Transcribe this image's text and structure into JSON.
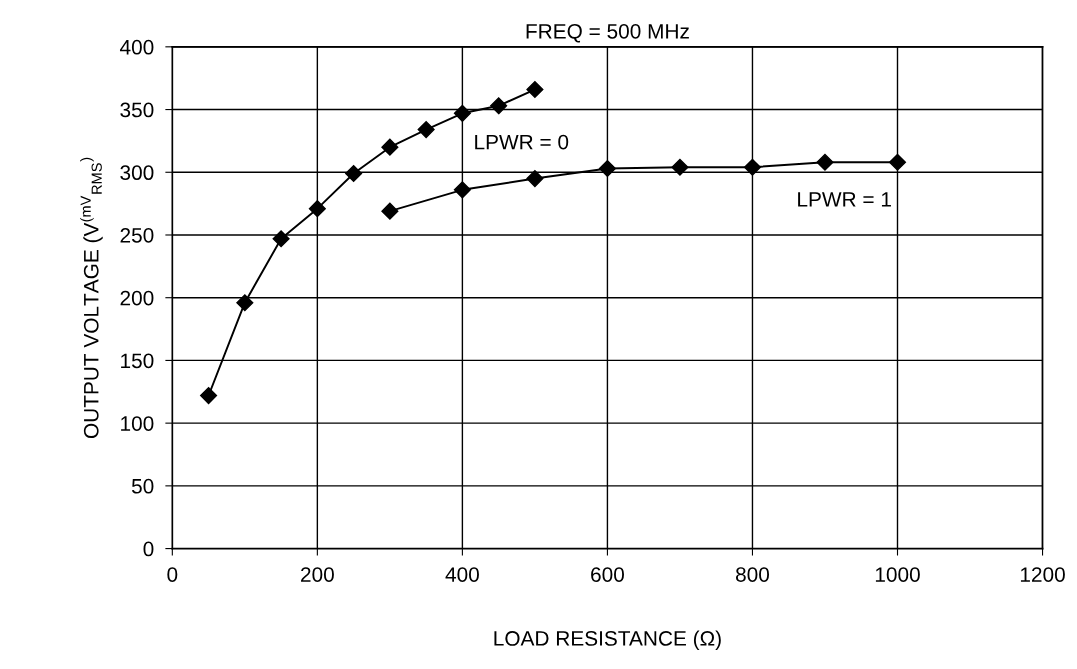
{
  "chart_data": {
    "type": "line",
    "title": "FREQ = 500 MHz",
    "xlabel": "LOAD RESISTANCE (Ω)",
    "ylabel": "OUTPUT VOLTAGE (V$^{(mV}$$_{RMS}$$^{)}$",
    "series": [
      {
        "name": "LPWR = 0",
        "color": "#000000",
        "x": [
          50,
          100,
          150,
          200,
          250,
          300,
          350,
          400,
          450,
          500
        ],
        "values": [
          122,
          196,
          247,
          271,
          299,
          320,
          334,
          347,
          353,
          366
        ]
      },
      {
        "name": "LPWR = 1",
        "color": "#000000",
        "x": [
          300,
          400,
          500,
          600,
          700,
          800,
          900,
          1000
        ],
        "values": [
          269,
          286,
          295,
          303,
          304,
          304,
          308,
          308
        ]
      }
    ],
    "xlim": [
      0,
      1200
    ],
    "xticks": [
      0,
      200,
      400,
      600,
      800,
      1000,
      1200
    ],
    "ylim": [
      0,
      400
    ],
    "yticks": [
      0,
      50,
      100,
      150,
      200,
      250,
      300,
      350,
      400
    ],
    "grid": true,
    "marker": "diamond",
    "line_style": "solid",
    "legend": false
  }
}
